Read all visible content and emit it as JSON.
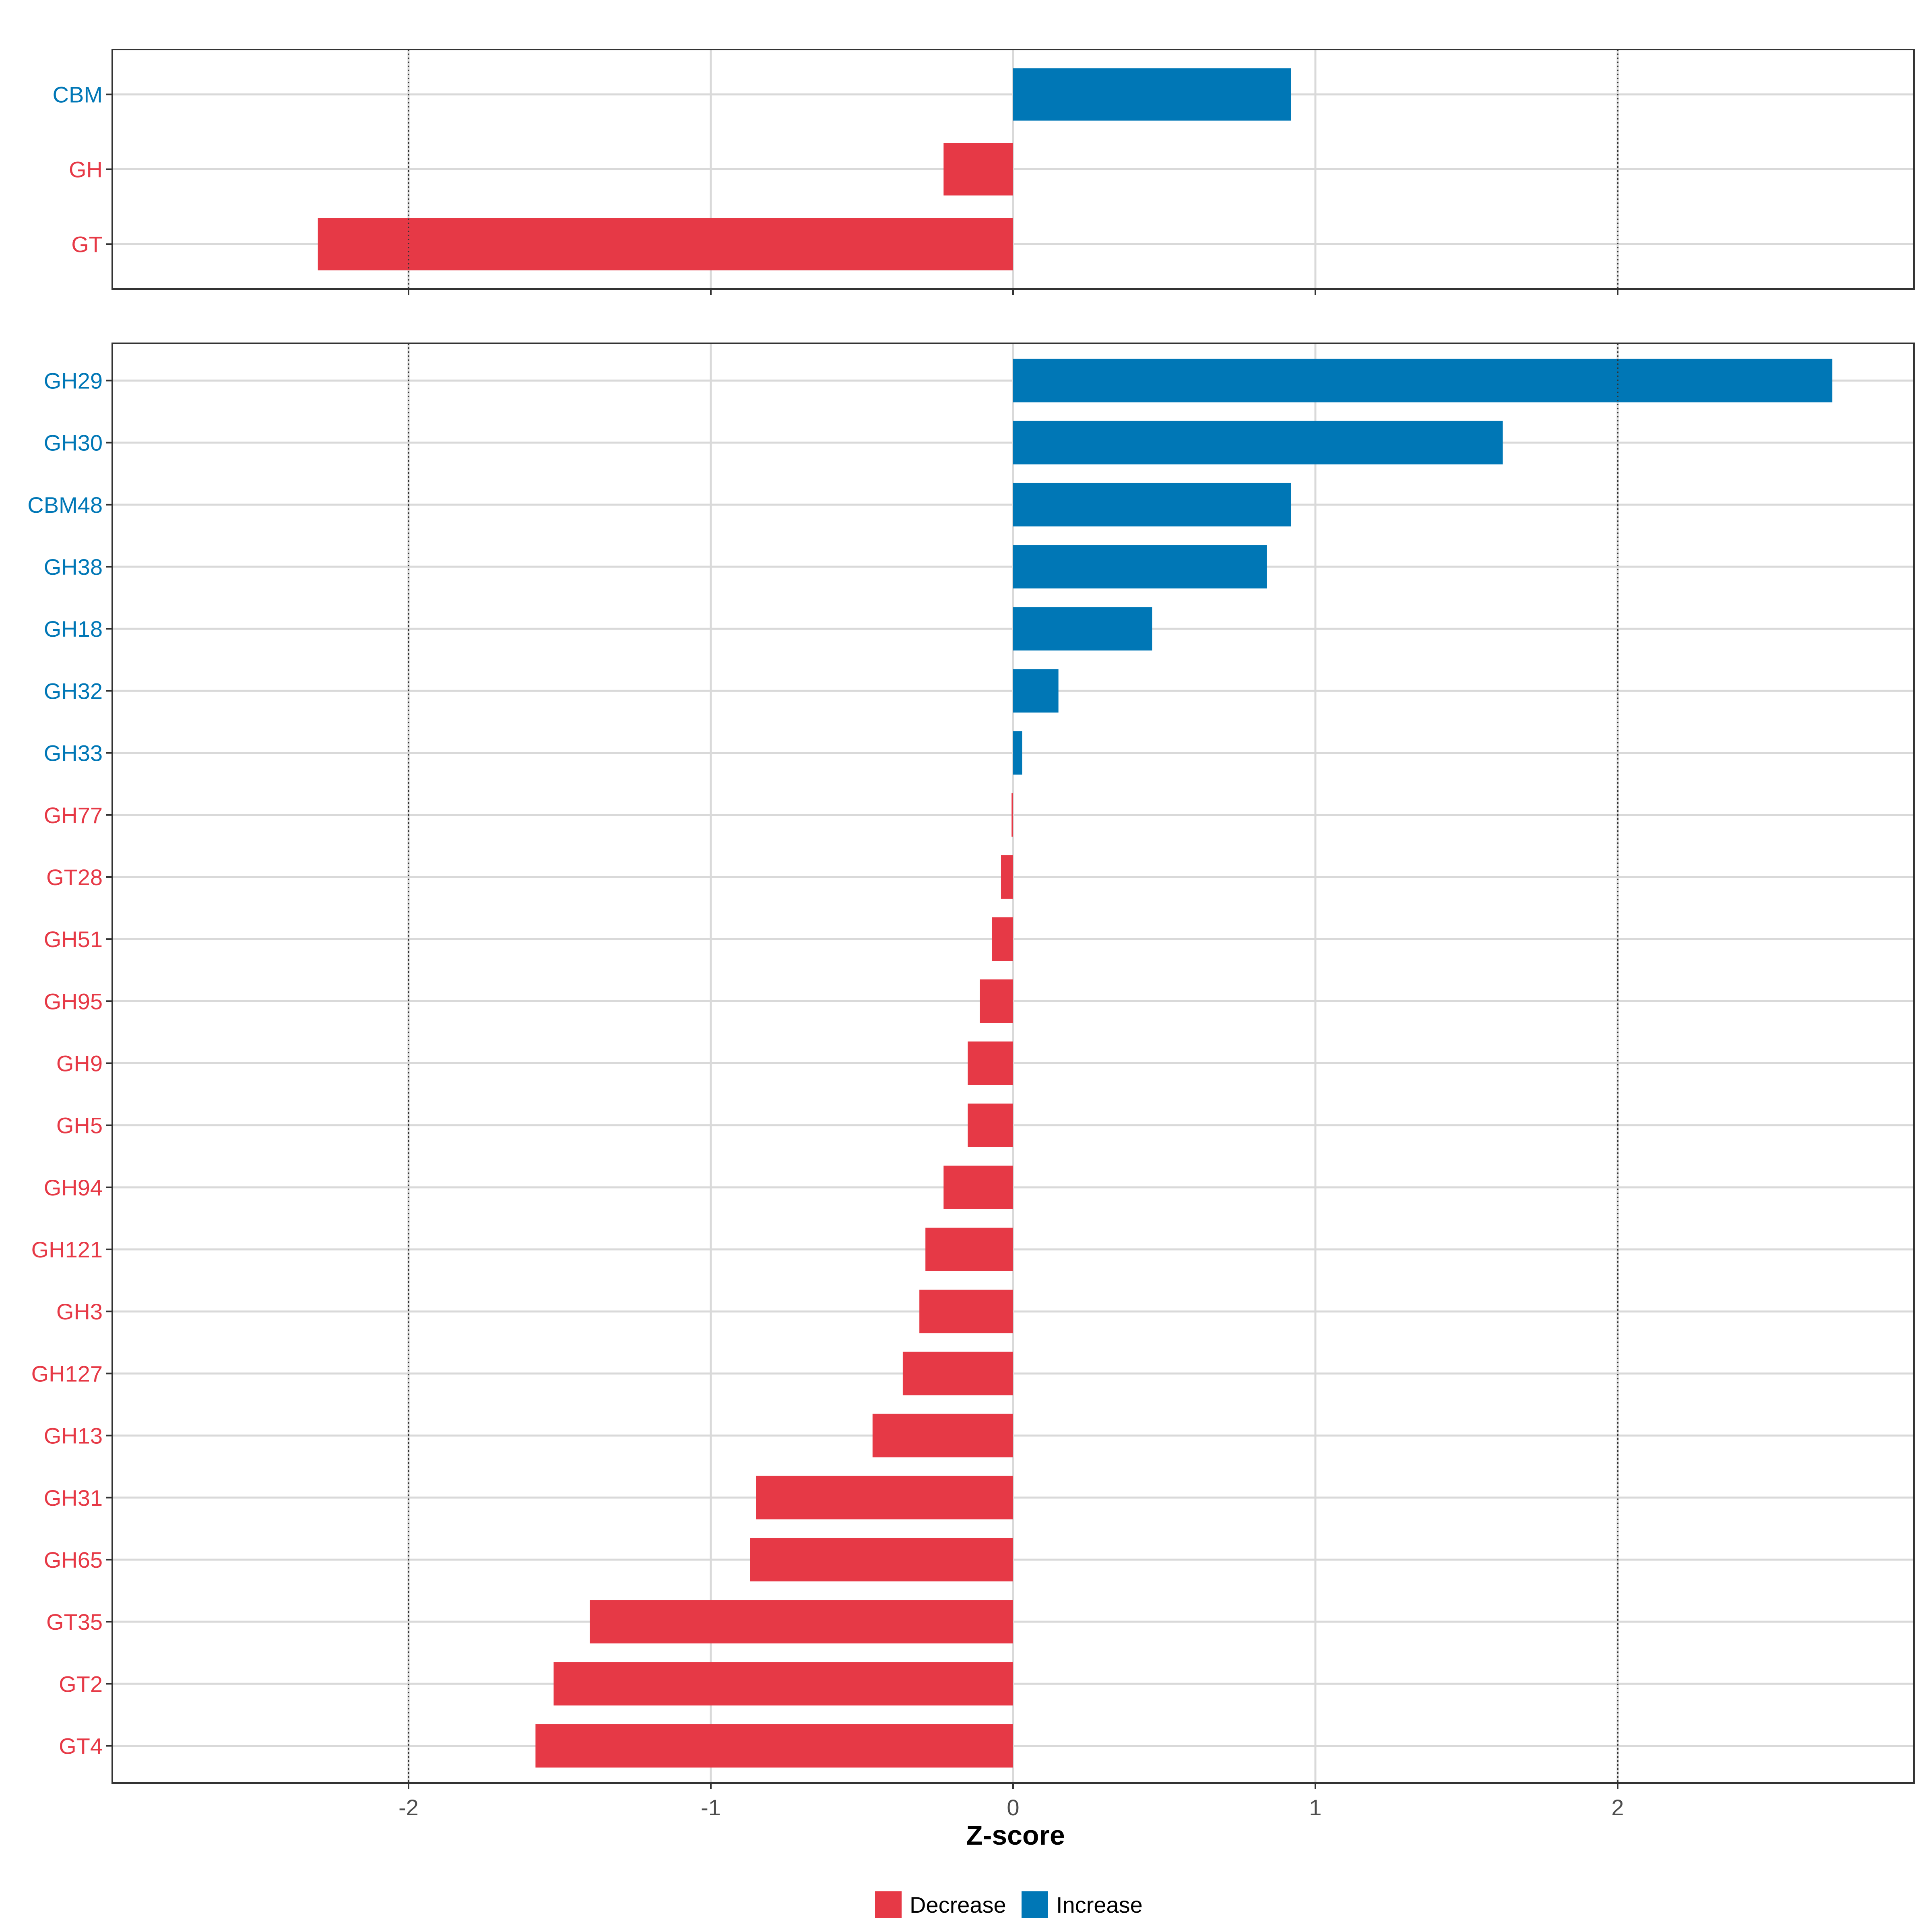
{
  "chart_data": [
    {
      "type": "bar",
      "orientation": "horizontal",
      "panel": "top",
      "categories": [
        "CBM",
        "GH",
        "GT"
      ],
      "values": [
        0.92,
        -0.23,
        -2.3
      ],
      "xlim": [
        -2.98,
        2.98
      ],
      "reference_lines": [
        -2,
        2
      ]
    },
    {
      "type": "bar",
      "orientation": "horizontal",
      "panel": "bottom",
      "categories": [
        "GH29",
        "GH30",
        "CBM48",
        "GH38",
        "GH18",
        "GH32",
        "GH33",
        "GH77",
        "GT28",
        "GH51",
        "GH95",
        "GH9",
        "GH5",
        "GH94",
        "GH121",
        "GH3",
        "GH127",
        "GH13",
        "GH31",
        "GH65",
        "GT35",
        "GT2",
        "GT4"
      ],
      "values": [
        2.71,
        1.62,
        0.92,
        0.84,
        0.46,
        0.15,
        0.03,
        -0.005,
        -0.04,
        -0.07,
        -0.11,
        -0.15,
        -0.15,
        -0.23,
        -0.29,
        -0.31,
        -0.365,
        -0.465,
        -0.85,
        -0.87,
        -1.4,
        -1.52,
        -1.58
      ],
      "xlim": [
        -2.98,
        2.98
      ],
      "xticks": [
        -2,
        -1,
        0,
        1,
        2
      ],
      "xtick_labels": [
        "-2",
        "-1",
        "0",
        "1",
        "2"
      ],
      "reference_lines": [
        -2,
        2
      ]
    }
  ],
  "axis": {
    "xlabel": "Z-score"
  },
  "legend": {
    "position": "bottom",
    "items": [
      {
        "label": "Decrease",
        "color": "#E63946"
      },
      {
        "label": "Increase",
        "color": "#0077B6"
      }
    ]
  },
  "colors": {
    "decrease": "#E63946",
    "increase": "#0077B6",
    "grid": "#D9D9D9",
    "frame": "#333333",
    "reference": "#333333"
  }
}
